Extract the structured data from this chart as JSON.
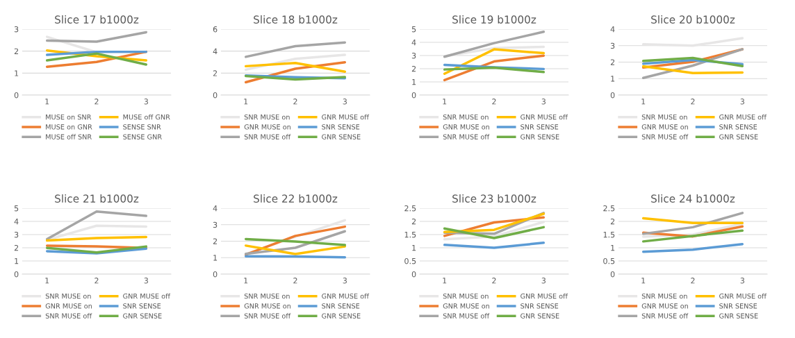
{
  "chart_data": [
    {
      "type": "line",
      "title": "Slice 17 b1000z",
      "categories": [
        "1",
        "2",
        "3"
      ],
      "ylim": [
        0,
        3
      ],
      "yticks": [
        0,
        1,
        2,
        3
      ],
      "grid": "y",
      "legend": "bottom",
      "series": [
        {
          "name": "MUSE on SNR",
          "color": "#e7e6e6",
          "values": [
            2.65,
            1.95,
            1.95
          ]
        },
        {
          "name": "MUSE on GNR",
          "color": "#ed7d31",
          "values": [
            1.29,
            1.51,
            1.97
          ]
        },
        {
          "name": "MUSE off SNR",
          "color": "#a5a5a5",
          "values": [
            2.48,
            2.43,
            2.86
          ]
        },
        {
          "name": "MUSE off GNR",
          "color": "#ffc000",
          "values": [
            2.03,
            1.77,
            1.58
          ]
        },
        {
          "name": "SENSE SNR",
          "color": "#5b9bd5",
          "values": [
            1.83,
            1.97,
            1.97
          ]
        },
        {
          "name": "SENSE GNR",
          "color": "#70ad47",
          "values": [
            1.58,
            1.89,
            1.39
          ]
        }
      ]
    },
    {
      "type": "line",
      "title": "Slice 18 b1000z",
      "categories": [
        "1",
        "2",
        "3"
      ],
      "ylim": [
        0,
        6
      ],
      "yticks": [
        0,
        2,
        4,
        6
      ],
      "grid": "y",
      "legend": "bottom",
      "series": [
        {
          "name": "SNR MUSE on",
          "color": "#e7e6e6",
          "values": [
            2.31,
            3.3,
            3.66
          ]
        },
        {
          "name": "GNR MUSE on",
          "color": "#ed7d31",
          "values": [
            1.17,
            2.4,
            2.99
          ]
        },
        {
          "name": "SNR MUSE off",
          "color": "#a5a5a5",
          "values": [
            3.48,
            4.45,
            4.79
          ]
        },
        {
          "name": "GNR MUSE off",
          "color": "#ffc000",
          "values": [
            2.63,
            2.92,
            2.13
          ]
        },
        {
          "name": "SNR SENSE",
          "color": "#5b9bd5",
          "values": [
            1.78,
            1.62,
            1.53
          ]
        },
        {
          "name": "GNR SENSE",
          "color": "#70ad47",
          "values": [
            1.73,
            1.42,
            1.64
          ]
        }
      ]
    },
    {
      "type": "line",
      "title": "Slice 19 b1000z",
      "categories": [
        "1",
        "2",
        "3"
      ],
      "ylim": [
        0,
        5
      ],
      "yticks": [
        0,
        1,
        2,
        3,
        4,
        5
      ],
      "grid": "y",
      "legend": "bottom",
      "series": [
        {
          "name": "SNR MUSE on",
          "color": "#e7e6e6",
          "values": [
            2.95,
            3.56,
            3.66
          ]
        },
        {
          "name": "GNR MUSE on",
          "color": "#ed7d31",
          "values": [
            1.14,
            2.55,
            2.99
          ]
        },
        {
          "name": "SNR MUSE off",
          "color": "#a5a5a5",
          "values": [
            2.91,
            3.94,
            4.8
          ]
        },
        {
          "name": "GNR MUSE off",
          "color": "#ffc000",
          "values": [
            1.62,
            3.47,
            3.18
          ]
        },
        {
          "name": "SNR SENSE",
          "color": "#5b9bd5",
          "values": [
            2.29,
            2.1,
            1.98
          ]
        },
        {
          "name": "GNR SENSE",
          "color": "#70ad47",
          "values": [
            1.94,
            2.08,
            1.75
          ]
        }
      ]
    },
    {
      "type": "line",
      "title": "Slice 20 b1000z",
      "categories": [
        "1",
        "2",
        "3"
      ],
      "ylim": [
        0,
        4
      ],
      "yticks": [
        0,
        1,
        2,
        3,
        4
      ],
      "grid": "y",
      "legend": "bottom",
      "series": [
        {
          "name": "SNR MUSE on",
          "color": "#e7e6e6",
          "values": [
            3.08,
            3.0,
            3.45
          ]
        },
        {
          "name": "GNR MUSE on",
          "color": "#ed7d31",
          "values": [
            1.67,
            2.02,
            2.78
          ]
        },
        {
          "name": "SNR MUSE off",
          "color": "#a5a5a5",
          "values": [
            1.04,
            1.79,
            2.78
          ]
        },
        {
          "name": "GNR MUSE off",
          "color": "#ffc000",
          "values": [
            1.75,
            1.34,
            1.37
          ]
        },
        {
          "name": "SNR SENSE",
          "color": "#5b9bd5",
          "values": [
            1.9,
            2.13,
            1.87
          ]
        },
        {
          "name": "GNR SENSE",
          "color": "#70ad47",
          "values": [
            2.07,
            2.25,
            1.76
          ]
        }
      ]
    },
    {
      "type": "line",
      "title": "Slice 21 b1000z",
      "categories": [
        "1",
        "2",
        "3"
      ],
      "ylim": [
        0,
        5
      ],
      "yticks": [
        0,
        1,
        2,
        3,
        4,
        5
      ],
      "grid": "y",
      "legend": "bottom",
      "series": [
        {
          "name": "SNR MUSE on",
          "color": "#e7e6e6",
          "values": [
            2.6,
            3.67,
            3.61
          ]
        },
        {
          "name": "GNR MUSE on",
          "color": "#ed7d31",
          "values": [
            2.16,
            2.1,
            1.99
          ]
        },
        {
          "name": "SNR MUSE off",
          "color": "#a5a5a5",
          "values": [
            2.66,
            4.75,
            4.42
          ]
        },
        {
          "name": "GNR MUSE off",
          "color": "#ffc000",
          "values": [
            2.55,
            2.74,
            2.82
          ]
        },
        {
          "name": "SNR SENSE",
          "color": "#5b9bd5",
          "values": [
            1.74,
            1.58,
            1.93
          ]
        },
        {
          "name": "GNR SENSE",
          "color": "#70ad47",
          "values": [
            1.99,
            1.64,
            2.1
          ]
        }
      ]
    },
    {
      "type": "line",
      "title": "Slice 22 b1000z",
      "categories": [
        "1",
        "2",
        "3"
      ],
      "ylim": [
        0,
        4
      ],
      "yticks": [
        0,
        1,
        2,
        3,
        4
      ],
      "grid": "y",
      "legend": "bottom",
      "series": [
        {
          "name": "SNR MUSE on",
          "color": "#e7e6e6",
          "values": [
            1.22,
            2.27,
            3.27
          ]
        },
        {
          "name": "GNR MUSE on",
          "color": "#ed7d31",
          "values": [
            1.18,
            2.32,
            2.88
          ]
        },
        {
          "name": "SNR MUSE off",
          "color": "#a5a5a5",
          "values": [
            1.23,
            1.6,
            2.6
          ]
        },
        {
          "name": "GNR MUSE off",
          "color": "#ffc000",
          "values": [
            1.73,
            1.22,
            1.68
          ]
        },
        {
          "name": "SNR SENSE",
          "color": "#5b9bd5",
          "values": [
            1.08,
            1.07,
            1.02
          ]
        },
        {
          "name": "GNR SENSE",
          "color": "#70ad47",
          "values": [
            2.13,
            1.98,
            1.77
          ]
        }
      ]
    },
    {
      "type": "line",
      "title": "Slice 23 b1000z",
      "categories": [
        "1",
        "2",
        "3"
      ],
      "ylim": [
        0,
        2.5
      ],
      "yticks": [
        0,
        0.5,
        1,
        1.5,
        2,
        2.5
      ],
      "grid": "y",
      "legend": "bottom",
      "series": [
        {
          "name": "SNR MUSE on",
          "color": "#e7e6e6",
          "values": [
            1.32,
            1.43,
            1.98
          ]
        },
        {
          "name": "GNR MUSE on",
          "color": "#ed7d31",
          "values": [
            1.45,
            1.96,
            2.15
          ]
        },
        {
          "name": "SNR MUSE off",
          "color": "#a5a5a5",
          "values": [
            1.57,
            1.53,
            2.32
          ]
        },
        {
          "name": "GNR MUSE off",
          "color": "#ffc000",
          "values": [
            1.6,
            1.68,
            2.29
          ]
        },
        {
          "name": "SNR SENSE",
          "color": "#5b9bd5",
          "values": [
            1.11,
            1.0,
            1.19
          ]
        },
        {
          "name": "GNR SENSE",
          "color": "#70ad47",
          "values": [
            1.73,
            1.37,
            1.78
          ]
        }
      ]
    },
    {
      "type": "line",
      "title": "Slice 24 b1000z",
      "categories": [
        "1",
        "2",
        "3"
      ],
      "ylim": [
        0,
        2.5
      ],
      "yticks": [
        0,
        0.5,
        1,
        1.5,
        2,
        2.5
      ],
      "grid": "y",
      "legend": "bottom",
      "series": [
        {
          "name": "SNR MUSE on",
          "color": "#e7e6e6",
          "values": [
            1.42,
            1.5,
            1.91
          ]
        },
        {
          "name": "GNR MUSE on",
          "color": "#ed7d31",
          "values": [
            1.57,
            1.43,
            1.81
          ]
        },
        {
          "name": "SNR MUSE off",
          "color": "#a5a5a5",
          "values": [
            1.53,
            1.78,
            2.32
          ]
        },
        {
          "name": "GNR MUSE off",
          "color": "#ffc000",
          "values": [
            2.12,
            1.94,
            1.94
          ]
        },
        {
          "name": "SNR SENSE",
          "color": "#5b9bd5",
          "values": [
            0.85,
            0.93,
            1.14
          ]
        },
        {
          "name": "GNR SENSE",
          "color": "#70ad47",
          "values": [
            1.24,
            1.45,
            1.65
          ]
        }
      ]
    }
  ]
}
